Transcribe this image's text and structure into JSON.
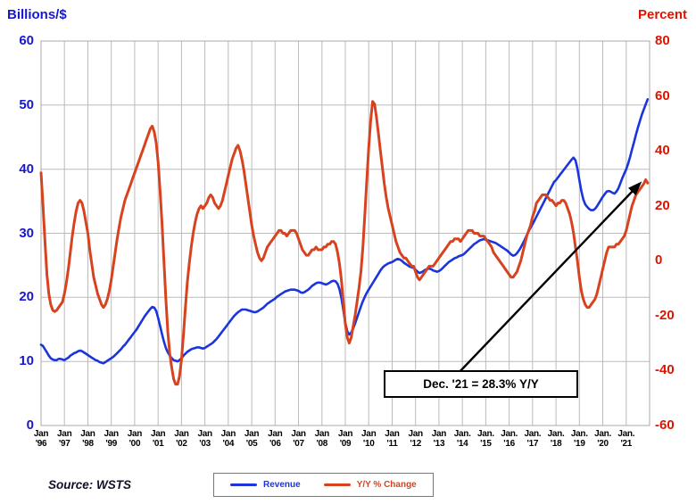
{
  "chart_data": {
    "type": "line",
    "grid": true,
    "left_axis": {
      "title": "Billions/$",
      "color": "#1717cf",
      "range": [
        0,
        60
      ],
      "ticks": [
        60,
        50,
        40,
        30,
        20,
        10,
        0
      ]
    },
    "right_axis": {
      "title": "Percent",
      "color": "#dd1400",
      "range": [
        -60,
        80
      ],
      "ticks": [
        80,
        60,
        40,
        20,
        0,
        -20,
        -40,
        -60
      ]
    },
    "x_axis": {
      "month_labels": [
        "Jan",
        "Jan",
        "Jan",
        "Jan",
        "Jan",
        "Jan",
        "Jan",
        "Jan",
        "Jan",
        "Jan",
        "Jan",
        "Jan",
        "Jan",
        "Jan",
        "Jan",
        "Jan",
        "Jan",
        "Jan",
        "Jan.",
        "Jan.",
        "Jan.",
        "Jan.",
        "Jan.",
        "Jan.",
        "Jan.",
        "Jan."
      ],
      "year_labels": [
        "'96",
        "'97",
        "'98",
        "'99",
        "'00",
        "'01",
        "'02",
        "'03",
        "'04",
        "'05",
        "'06",
        "'07",
        "'08",
        "'09",
        "'10",
        "'11",
        "'12",
        "'13",
        "'14",
        "'15",
        "'16",
        "'17",
        "'18",
        "'19",
        "'20",
        "'21"
      ]
    },
    "series": [
      {
        "name": "Revenue",
        "axis": "left",
        "color": "#1b35dd",
        "width": 2.6,
        "values": [
          12.6,
          12.4,
          11.9,
          11.4,
          10.9,
          10.5,
          10.3,
          10.2,
          10.2,
          10.4,
          10.4,
          10.3,
          10.2,
          10.4,
          10.6,
          10.9,
          11.1,
          11.3,
          11.4,
          11.6,
          11.7,
          11.6,
          11.4,
          11.2,
          11.0,
          10.8,
          10.6,
          10.4,
          10.2,
          10.1,
          9.9,
          9.8,
          9.7,
          9.9,
          10.1,
          10.3,
          10.5,
          10.7,
          11.0,
          11.3,
          11.6,
          11.9,
          12.3,
          12.6,
          13.0,
          13.4,
          13.8,
          14.2,
          14.6,
          15.0,
          15.5,
          16.0,
          16.5,
          17.0,
          17.4,
          17.8,
          18.2,
          18.5,
          18.4,
          17.9,
          16.8,
          15.6,
          14.3,
          13.1,
          12.1,
          11.4,
          10.9,
          10.5,
          10.2,
          10.1,
          10.0,
          10.2,
          10.5,
          10.9,
          11.2,
          11.5,
          11.7,
          11.9,
          12.0,
          12.1,
          12.2,
          12.2,
          12.1,
          12.0,
          12.1,
          12.3,
          12.5,
          12.7,
          12.9,
          13.2,
          13.5,
          13.9,
          14.3,
          14.7,
          15.1,
          15.5,
          15.9,
          16.3,
          16.7,
          17.1,
          17.4,
          17.7,
          17.9,
          18.1,
          18.1,
          18.1,
          18.0,
          17.9,
          17.8,
          17.7,
          17.7,
          17.8,
          18.0,
          18.2,
          18.4,
          18.7,
          19.0,
          19.2,
          19.4,
          19.6,
          19.8,
          20.1,
          20.3,
          20.5,
          20.7,
          20.9,
          21.0,
          21.1,
          21.2,
          21.2,
          21.2,
          21.1,
          21.0,
          20.8,
          20.7,
          20.8,
          21.0,
          21.2,
          21.5,
          21.8,
          22.0,
          22.2,
          22.3,
          22.3,
          22.2,
          22.1,
          22.0,
          22.1,
          22.3,
          22.5,
          22.6,
          22.5,
          22.1,
          21.3,
          19.9,
          18.0,
          16.0,
          14.7,
          14.2,
          14.5,
          15.1,
          15.9,
          16.8,
          17.7,
          18.6,
          19.4,
          20.1,
          20.7,
          21.2,
          21.7,
          22.2,
          22.7,
          23.2,
          23.7,
          24.2,
          24.6,
          24.9,
          25.1,
          25.3,
          25.4,
          25.5,
          25.7,
          25.9,
          26.0,
          25.9,
          25.7,
          25.4,
          25.2,
          25.0,
          24.8,
          24.7,
          24.6,
          24.3,
          24.0,
          23.8,
          23.9,
          24.1,
          24.3,
          24.4,
          24.5,
          24.4,
          24.2,
          24.1,
          24.0,
          24.1,
          24.3,
          24.6,
          24.9,
          25.2,
          25.5,
          25.7,
          25.9,
          26.1,
          26.2,
          26.4,
          26.5,
          26.6,
          26.8,
          27.1,
          27.4,
          27.7,
          28.0,
          28.3,
          28.5,
          28.7,
          28.9,
          29.0,
          29.1,
          29.0,
          28.9,
          28.8,
          28.7,
          28.6,
          28.5,
          28.3,
          28.1,
          27.9,
          27.7,
          27.5,
          27.3,
          27.0,
          26.7,
          26.5,
          26.6,
          26.9,
          27.3,
          27.8,
          28.4,
          29.0,
          29.7,
          30.3,
          30.9,
          31.4,
          32.0,
          32.6,
          33.2,
          33.8,
          34.4,
          35.0,
          35.6,
          36.2,
          36.8,
          37.4,
          38.0,
          38.3,
          38.7,
          39.1,
          39.5,
          39.9,
          40.3,
          40.7,
          41.1,
          41.5,
          41.8,
          41.4,
          40.1,
          38.3,
          36.6,
          35.3,
          34.5,
          34.1,
          33.8,
          33.6,
          33.6,
          33.8,
          34.2,
          34.7,
          35.2,
          35.7,
          36.1,
          36.5,
          36.6,
          36.5,
          36.3,
          36.2,
          36.5,
          37.0,
          37.8,
          38.6,
          39.3,
          40.0,
          40.9,
          41.9,
          43.1,
          44.2,
          45.4,
          46.5,
          47.5,
          48.5,
          49.3,
          50.1,
          50.9
        ]
      },
      {
        "name": "Y/Y % Change",
        "axis": "right",
        "color": "#d8431f",
        "width": 3,
        "values": [
          32,
          20,
          7,
          -5,
          -12,
          -16,
          -18,
          -18.5,
          -18,
          -17,
          -16,
          -15,
          -12,
          -8,
          -3,
          3,
          9,
          14,
          18,
          21,
          22,
          21,
          18,
          14,
          10,
          4,
          -1,
          -6,
          -9,
          -12,
          -14,
          -16,
          -17,
          -16,
          -14,
          -11,
          -7,
          -2,
          3,
          8,
          12,
          16,
          19,
          22,
          24,
          26,
          28,
          30,
          32,
          34,
          36,
          38,
          40,
          42,
          44,
          46,
          48,
          49,
          47,
          43,
          36,
          26,
          14,
          0,
          -14,
          -26,
          -34,
          -39,
          -43,
          -45,
          -45,
          -42,
          -36,
          -27,
          -17,
          -8,
          -1,
          5,
          10,
          14,
          17,
          19,
          20,
          19,
          20,
          21,
          23,
          24,
          23,
          21,
          20,
          19,
          20,
          22,
          25,
          28,
          31,
          34,
          37,
          39,
          41,
          42,
          40,
          37,
          33,
          28,
          23,
          18,
          13,
          9,
          6,
          3,
          1,
          0,
          1,
          3,
          5,
          6,
          7,
          8,
          9,
          10,
          11,
          11,
          10,
          10,
          9,
          10,
          11,
          11,
          11,
          10,
          8,
          6,
          4,
          3,
          2,
          2,
          3,
          4,
          4,
          5,
          4,
          4,
          4,
          5,
          5,
          6,
          6,
          7,
          7,
          6,
          3,
          -1,
          -7,
          -15,
          -23,
          -28,
          -30,
          -28,
          -24,
          -20,
          -15,
          -10,
          -4,
          5,
          17,
          29,
          41,
          51,
          58,
          57,
          52,
          46,
          40,
          34,
          28,
          23,
          19,
          16,
          13,
          10,
          7,
          5,
          3,
          2,
          1,
          1,
          0,
          -1,
          -2,
          -2,
          -4,
          -6,
          -7,
          -6,
          -5,
          -4,
          -3,
          -2,
          -2,
          -2,
          -1,
          0,
          1,
          2,
          3,
          4,
          5,
          6,
          7,
          7,
          8,
          8,
          8,
          7,
          8,
          9,
          10,
          11,
          11,
          11,
          10,
          10,
          10,
          9,
          9,
          9,
          8,
          7,
          6,
          5,
          3,
          2,
          1,
          0,
          -1,
          -2,
          -3,
          -4,
          -5,
          -6,
          -6,
          -5,
          -4,
          -2,
          0,
          3,
          6,
          9,
          11,
          13,
          16,
          18,
          21,
          22,
          23,
          24,
          24,
          24,
          23,
          22,
          22,
          21,
          20,
          21,
          21,
          22,
          22,
          21,
          19,
          17,
          14,
          10,
          5,
          0,
          -6,
          -11,
          -14,
          -16,
          -17,
          -17,
          -16,
          -15,
          -14,
          -12,
          -9,
          -6,
          -3,
          0,
          3,
          5,
          5,
          5,
          5,
          6,
          6,
          7,
          8,
          9,
          11,
          14,
          17,
          20,
          22,
          24,
          25,
          26,
          27,
          28,
          29.5,
          28.3
        ]
      }
    ],
    "annotation": {
      "text": "Dec. '21 = 28.3% Y/Y"
    },
    "source": "Source: WSTS"
  }
}
